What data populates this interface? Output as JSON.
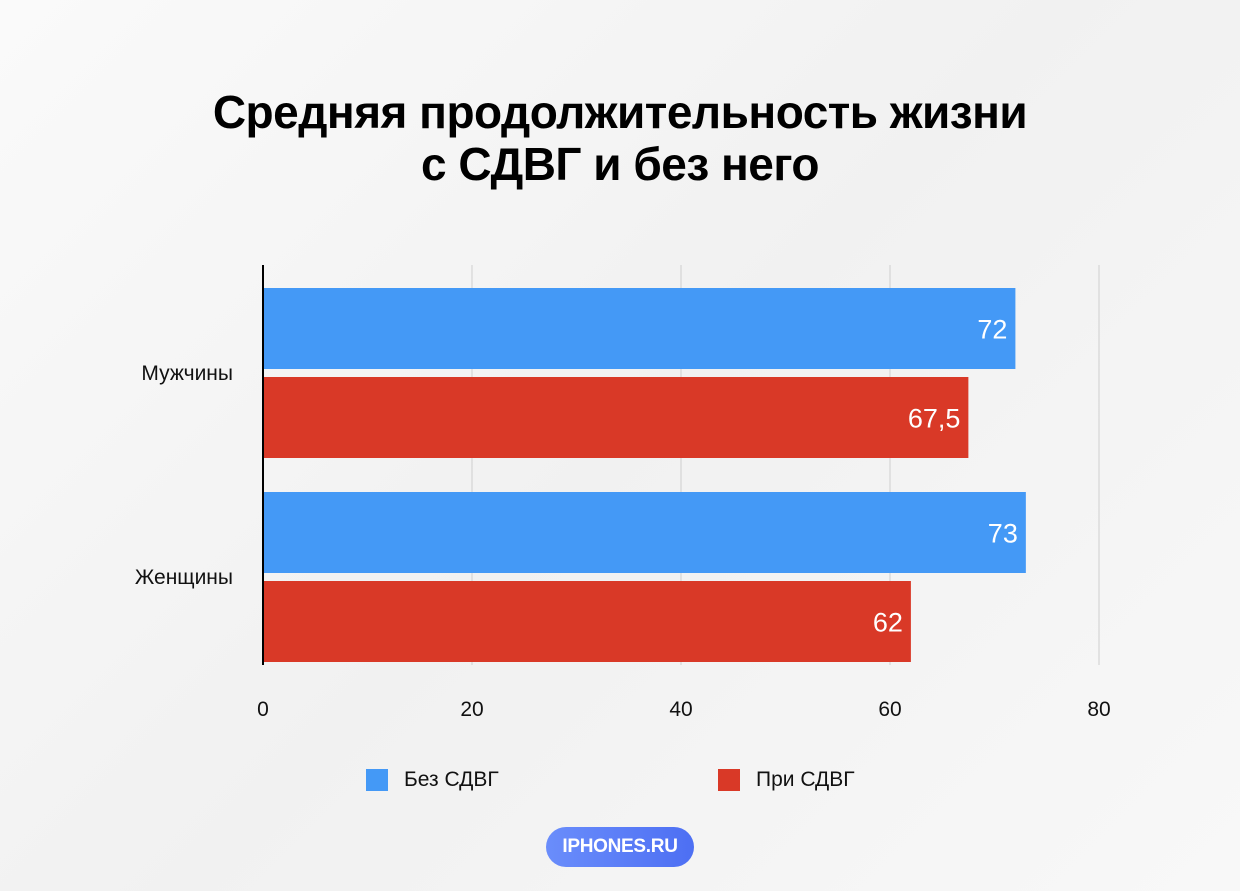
{
  "title_lines": [
    "Средняя продолжительность жизни",
    "с СДВГ и без него"
  ],
  "brand": "IPHONES.RU",
  "colors": {
    "no_adhd": "#4499f6",
    "adhd": "#d93927"
  },
  "chart_data": {
    "type": "bar",
    "orientation": "horizontal",
    "categories": [
      "Мужчины",
      "Женщины"
    ],
    "series": [
      {
        "name": "Без СДВГ",
        "values": [
          72,
          73
        ],
        "labels": [
          "72",
          "73"
        ]
      },
      {
        "name": "При СДВГ",
        "values": [
          67.5,
          62
        ],
        "labels": [
          "67,5",
          "62"
        ]
      }
    ],
    "xlim": [
      0,
      80
    ],
    "xticks": [
      0,
      20,
      40,
      60,
      80
    ],
    "grid": true,
    "legend": "bottom"
  }
}
